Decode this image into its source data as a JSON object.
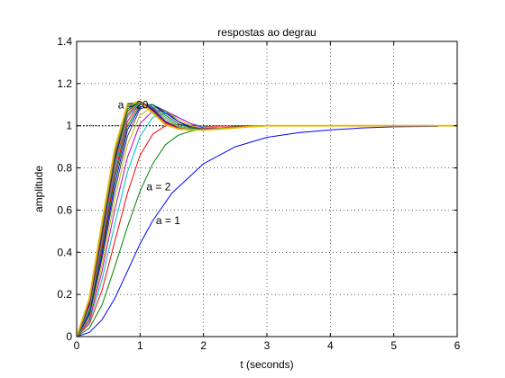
{
  "chart_data": {
    "type": "line",
    "title": "respostas ao degrau",
    "xlabel": "t (seconds)",
    "ylabel": "amplitude",
    "xlim": [
      0,
      6
    ],
    "ylim": [
      0,
      1.4
    ],
    "xticks": [
      "0",
      "1",
      "2",
      "3",
      "4",
      "5",
      "6"
    ],
    "yticks": [
      "0",
      "0.2",
      "0.4",
      "0.6",
      "0.8",
      "1",
      "1.2",
      "1.4"
    ],
    "grid": true,
    "reference_line": {
      "y": 1,
      "style": "dotted",
      "color": "#000000"
    },
    "annotations": [
      {
        "text": "a = 1",
        "x": 1.25,
        "y": 0.55
      },
      {
        "text": "a = 2",
        "x": 1.1,
        "y": 0.71
      },
      {
        "text": "a = 20",
        "x": 0.65,
        "y": 1.1
      }
    ],
    "series": [
      {
        "color": "#0000ff",
        "points": [
          [
            0,
            0
          ],
          [
            0.2,
            0.02
          ],
          [
            0.4,
            0.08
          ],
          [
            0.6,
            0.18
          ],
          [
            0.8,
            0.31
          ],
          [
            1,
            0.44
          ],
          [
            1.2,
            0.55
          ],
          [
            1.5,
            0.68
          ],
          [
            2,
            0.82
          ],
          [
            2.5,
            0.9
          ],
          [
            3,
            0.945
          ],
          [
            3.5,
            0.967
          ],
          [
            4,
            0.98
          ],
          [
            4.5,
            0.99
          ],
          [
            5,
            0.995
          ],
          [
            5.7,
            0.997
          ]
        ]
      },
      {
        "color": "#008000",
        "points": [
          [
            0,
            0
          ],
          [
            0.2,
            0.04
          ],
          [
            0.4,
            0.15
          ],
          [
            0.6,
            0.33
          ],
          [
            0.8,
            0.52
          ],
          [
            1,
            0.69
          ],
          [
            1.2,
            0.82
          ],
          [
            1.4,
            0.91
          ],
          [
            1.6,
            0.955
          ],
          [
            1.8,
            0.975
          ],
          [
            2,
            0.985
          ],
          [
            2.5,
            0.995
          ],
          [
            3,
            1.0
          ],
          [
            6,
            1.0
          ]
        ]
      },
      {
        "color": "#ff0000",
        "points": [
          [
            0,
            0
          ],
          [
            0.2,
            0.06
          ],
          [
            0.4,
            0.22
          ],
          [
            0.6,
            0.45
          ],
          [
            0.8,
            0.68
          ],
          [
            1,
            0.86
          ],
          [
            1.2,
            0.96
          ],
          [
            1.4,
            1.0
          ],
          [
            1.6,
            1.005
          ],
          [
            1.8,
            1.002
          ],
          [
            2,
            0.998
          ],
          [
            2.5,
            0.999
          ],
          [
            6,
            1.0
          ]
        ]
      },
      {
        "color": "#00bfbf",
        "points": [
          [
            0,
            0
          ],
          [
            0.2,
            0.07
          ],
          [
            0.4,
            0.27
          ],
          [
            0.6,
            0.53
          ],
          [
            0.8,
            0.78
          ],
          [
            1,
            0.95
          ],
          [
            1.2,
            1.04
          ],
          [
            1.4,
            1.06
          ],
          [
            1.6,
            1.04
          ],
          [
            1.8,
            1.01
          ],
          [
            2,
            0.995
          ],
          [
            2.3,
            0.99
          ],
          [
            2.7,
            0.995
          ],
          [
            3,
            1.0
          ],
          [
            6,
            1.0
          ]
        ]
      },
      {
        "color": "#bf00bf",
        "points": [
          [
            0,
            0
          ],
          [
            0.2,
            0.08
          ],
          [
            0.4,
            0.31
          ],
          [
            0.6,
            0.6
          ],
          [
            0.8,
            0.85
          ],
          [
            1,
            1.01
          ],
          [
            1.2,
            1.07
          ],
          [
            1.4,
            1.07
          ],
          [
            1.6,
            1.04
          ],
          [
            1.8,
            1.01
          ],
          [
            2,
            0.99
          ],
          [
            2.3,
            0.985
          ],
          [
            2.7,
            0.995
          ],
          [
            3,
            1.0
          ],
          [
            6,
            1.0
          ]
        ]
      },
      {
        "color": "#bfbf00",
        "points": [
          [
            0,
            0
          ],
          [
            0.2,
            0.09
          ],
          [
            0.4,
            0.34
          ],
          [
            0.6,
            0.65
          ],
          [
            0.8,
            0.91
          ],
          [
            1,
            1.05
          ],
          [
            1.2,
            1.09
          ],
          [
            1.4,
            1.07
          ],
          [
            1.6,
            1.03
          ],
          [
            1.8,
            1.0
          ],
          [
            2,
            0.985
          ],
          [
            2.3,
            0.985
          ],
          [
            2.7,
            0.995
          ],
          [
            3,
            1.0
          ],
          [
            6,
            1.0
          ]
        ]
      },
      {
        "color": "#404040",
        "points": [
          [
            0,
            0
          ],
          [
            0.2,
            0.1
          ],
          [
            0.4,
            0.37
          ],
          [
            0.6,
            0.69
          ],
          [
            0.8,
            0.95
          ],
          [
            1,
            1.08
          ],
          [
            1.2,
            1.1
          ],
          [
            1.4,
            1.07
          ],
          [
            1.6,
            1.02
          ],
          [
            1.8,
            0.995
          ],
          [
            2,
            0.985
          ],
          [
            2.3,
            0.985
          ],
          [
            2.7,
            0.995
          ],
          [
            3,
            1.0
          ],
          [
            6,
            1.0
          ]
        ]
      },
      {
        "color": "#0000ff",
        "points": [
          [
            0,
            0
          ],
          [
            0.2,
            0.11
          ],
          [
            0.4,
            0.39
          ],
          [
            0.6,
            0.72
          ],
          [
            0.8,
            0.98
          ],
          [
            1,
            1.09
          ],
          [
            1.2,
            1.1
          ],
          [
            1.4,
            1.06
          ],
          [
            1.6,
            1.02
          ],
          [
            1.8,
            0.99
          ],
          [
            2,
            0.982
          ],
          [
            2.3,
            0.985
          ],
          [
            2.7,
            0.995
          ],
          [
            3,
            1.0
          ],
          [
            6,
            1.0
          ]
        ]
      },
      {
        "color": "#008000",
        "points": [
          [
            0,
            0
          ],
          [
            0.2,
            0.12
          ],
          [
            0.4,
            0.41
          ],
          [
            0.6,
            0.75
          ],
          [
            0.8,
            1.0
          ],
          [
            1,
            1.1
          ],
          [
            1.2,
            1.1
          ],
          [
            1.4,
            1.05
          ],
          [
            1.6,
            1.01
          ],
          [
            1.8,
            0.99
          ],
          [
            2,
            0.98
          ],
          [
            2.3,
            0.985
          ],
          [
            2.7,
            0.995
          ],
          [
            3,
            1.0
          ],
          [
            6,
            1.0
          ]
        ]
      },
      {
        "color": "#ff0000",
        "points": [
          [
            0,
            0
          ],
          [
            0.2,
            0.13
          ],
          [
            0.4,
            0.43
          ],
          [
            0.6,
            0.77
          ],
          [
            0.8,
            1.02
          ],
          [
            1,
            1.11
          ],
          [
            1.2,
            1.09
          ],
          [
            1.4,
            1.04
          ],
          [
            1.6,
            1.0
          ],
          [
            1.8,
            0.985
          ],
          [
            2,
            0.98
          ],
          [
            2.3,
            0.985
          ],
          [
            2.7,
            0.995
          ],
          [
            3,
            1.0
          ],
          [
            6,
            1.0
          ]
        ]
      },
      {
        "color": "#00bfbf",
        "points": [
          [
            0,
            0
          ],
          [
            0.2,
            0.13
          ],
          [
            0.4,
            0.45
          ],
          [
            0.6,
            0.79
          ],
          [
            0.8,
            1.04
          ],
          [
            1,
            1.11
          ],
          [
            1.2,
            1.09
          ],
          [
            1.4,
            1.04
          ],
          [
            1.6,
            1.0
          ],
          [
            1.8,
            0.985
          ],
          [
            2,
            0.98
          ],
          [
            2.3,
            0.985
          ],
          [
            2.7,
            0.995
          ],
          [
            3,
            1.0
          ],
          [
            6,
            1.0
          ]
        ]
      },
      {
        "color": "#bf00bf",
        "points": [
          [
            0,
            0
          ],
          [
            0.2,
            0.14
          ],
          [
            0.4,
            0.46
          ],
          [
            0.6,
            0.81
          ],
          [
            0.8,
            1.05
          ],
          [
            1,
            1.115
          ],
          [
            1.2,
            1.085
          ],
          [
            1.4,
            1.03
          ],
          [
            1.6,
            0.995
          ],
          [
            1.8,
            0.982
          ],
          [
            2,
            0.98
          ],
          [
            2.3,
            0.985
          ],
          [
            2.7,
            0.995
          ],
          [
            3,
            1.0
          ],
          [
            6,
            1.0
          ]
        ]
      },
      {
        "color": "#bfbf00",
        "points": [
          [
            0,
            0
          ],
          [
            0.2,
            0.14
          ],
          [
            0.4,
            0.47
          ],
          [
            0.6,
            0.82
          ],
          [
            0.8,
            1.06
          ],
          [
            1,
            1.115
          ],
          [
            1.2,
            1.08
          ],
          [
            1.4,
            1.03
          ],
          [
            1.6,
            0.995
          ],
          [
            1.8,
            0.982
          ],
          [
            2,
            0.98
          ],
          [
            2.3,
            0.985
          ],
          [
            2.7,
            0.995
          ],
          [
            3,
            1.0
          ],
          [
            6,
            1.0
          ]
        ]
      },
      {
        "color": "#404040",
        "points": [
          [
            0,
            0
          ],
          [
            0.2,
            0.15
          ],
          [
            0.4,
            0.48
          ],
          [
            0.6,
            0.83
          ],
          [
            0.8,
            1.07
          ],
          [
            1,
            1.115
          ],
          [
            1.2,
            1.08
          ],
          [
            1.4,
            1.02
          ],
          [
            1.6,
            0.99
          ],
          [
            1.8,
            0.98
          ],
          [
            2,
            0.98
          ],
          [
            2.3,
            0.985
          ],
          [
            2.7,
            0.995
          ],
          [
            3,
            1.0
          ],
          [
            6,
            1.0
          ]
        ]
      },
      {
        "color": "#0000ff",
        "points": [
          [
            0,
            0
          ],
          [
            0.2,
            0.15
          ],
          [
            0.4,
            0.49
          ],
          [
            0.6,
            0.84
          ],
          [
            0.8,
            1.08
          ],
          [
            1,
            1.115
          ],
          [
            1.2,
            1.075
          ],
          [
            1.4,
            1.02
          ],
          [
            1.6,
            0.99
          ],
          [
            1.8,
            0.98
          ],
          [
            2,
            0.98
          ],
          [
            2.3,
            0.985
          ],
          [
            2.7,
            0.995
          ],
          [
            3,
            1.0
          ],
          [
            6,
            1.0
          ]
        ]
      },
      {
        "color": "#008000",
        "points": [
          [
            0,
            0
          ],
          [
            0.2,
            0.16
          ],
          [
            0.4,
            0.5
          ],
          [
            0.6,
            0.85
          ],
          [
            0.8,
            1.08
          ],
          [
            1,
            1.115
          ],
          [
            1.2,
            1.07
          ],
          [
            1.4,
            1.015
          ],
          [
            1.6,
            0.988
          ],
          [
            1.8,
            0.98
          ],
          [
            2,
            0.98
          ],
          [
            2.3,
            0.985
          ],
          [
            2.7,
            0.995
          ],
          [
            3,
            1.0
          ],
          [
            6,
            1.0
          ]
        ]
      },
      {
        "color": "#ff0000",
        "points": [
          [
            0,
            0
          ],
          [
            0.2,
            0.16
          ],
          [
            0.4,
            0.51
          ],
          [
            0.6,
            0.86
          ],
          [
            0.8,
            1.09
          ],
          [
            1,
            1.115
          ],
          [
            1.2,
            1.07
          ],
          [
            1.4,
            1.015
          ],
          [
            1.6,
            0.988
          ],
          [
            1.8,
            0.98
          ],
          [
            2,
            0.98
          ],
          [
            2.3,
            0.985
          ],
          [
            2.7,
            0.995
          ],
          [
            3,
            1.0
          ],
          [
            6,
            1.0
          ]
        ]
      },
      {
        "color": "#00bfbf",
        "points": [
          [
            0,
            0
          ],
          [
            0.2,
            0.17
          ],
          [
            0.4,
            0.52
          ],
          [
            0.6,
            0.87
          ],
          [
            0.8,
            1.09
          ],
          [
            1,
            1.115
          ],
          [
            1.2,
            1.065
          ],
          [
            1.4,
            1.01
          ],
          [
            1.6,
            0.985
          ],
          [
            1.8,
            0.98
          ],
          [
            2,
            0.98
          ],
          [
            2.3,
            0.985
          ],
          [
            2.7,
            0.995
          ],
          [
            3,
            1.0
          ],
          [
            6,
            1.0
          ]
        ]
      },
      {
        "color": "#bf00bf",
        "points": [
          [
            0,
            0
          ],
          [
            0.2,
            0.17
          ],
          [
            0.4,
            0.53
          ],
          [
            0.6,
            0.88
          ],
          [
            0.8,
            1.1
          ],
          [
            1,
            1.115
          ],
          [
            1.2,
            1.06
          ],
          [
            1.4,
            1.01
          ],
          [
            1.6,
            0.985
          ],
          [
            1.8,
            0.98
          ],
          [
            2,
            0.98
          ],
          [
            2.3,
            0.985
          ],
          [
            2.7,
            0.995
          ],
          [
            3,
            1.0
          ],
          [
            6,
            1.0
          ]
        ]
      },
      {
        "color": "#e6b800",
        "points": [
          [
            0,
            0
          ],
          [
            0.2,
            0.18
          ],
          [
            0.4,
            0.54
          ],
          [
            0.6,
            0.89
          ],
          [
            0.8,
            1.1
          ],
          [
            1,
            1.115
          ],
          [
            1.2,
            1.06
          ],
          [
            1.4,
            1.005
          ],
          [
            1.6,
            0.985
          ],
          [
            1.8,
            0.98
          ],
          [
            2,
            0.98
          ],
          [
            2.3,
            0.985
          ],
          [
            2.7,
            0.995
          ],
          [
            3,
            1.0
          ],
          [
            6,
            1.0
          ]
        ]
      }
    ]
  }
}
